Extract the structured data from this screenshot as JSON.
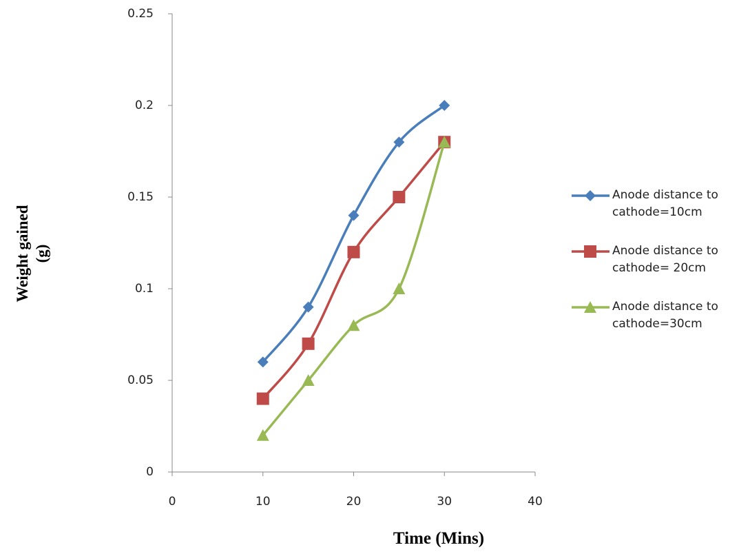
{
  "chart_data": {
    "type": "line",
    "x_label": "Time (Mins)",
    "y_label": "Weight gained (g)",
    "x": [
      10,
      15,
      20,
      25,
      30
    ],
    "series": [
      {
        "name": "Anode distance to cathode=10cm",
        "color": "#4a7ebb",
        "marker": "diamond",
        "values": [
          0.06,
          0.09,
          0.14,
          0.18,
          0.2
        ]
      },
      {
        "name": "Anode distance to cathode= 20cm",
        "color": "#be4b48",
        "marker": "square",
        "values": [
          0.04,
          0.07,
          0.12,
          0.15,
          0.18
        ]
      },
      {
        "name": "Anode distance to cathode=30cm",
        "color": "#98b954",
        "marker": "triangle",
        "values": [
          0.02,
          0.05,
          0.08,
          0.1,
          0.18
        ]
      }
    ],
    "xlim": [
      0,
      40
    ],
    "xticks": [
      0,
      10,
      20,
      30,
      40
    ],
    "ylim": [
      0,
      0.25
    ],
    "yticks": [
      0,
      0.05,
      0.1,
      0.15,
      0.2,
      0.25
    ],
    "smooth": true,
    "grid": false,
    "legend": "right"
  }
}
